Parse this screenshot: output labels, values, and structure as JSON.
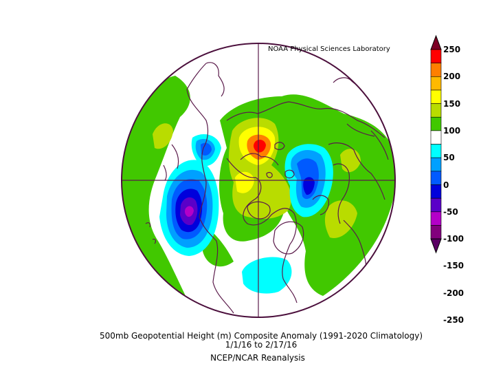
{
  "header": {
    "credit": "NOAA Physical Sciences Laboratory"
  },
  "caption": {
    "line1": "500mb Geopotential Height (m) Composite Anomaly (1991-2020 Climatology)",
    "line2": "1/1/16   to 2/17/16",
    "line3": "NCEP/NCAR Reanalysis"
  },
  "colorbar": {
    "levels": [
      "250",
      "200",
      "150",
      "100",
      "50",
      "0",
      "-50",
      "-100",
      "-150",
      "-200",
      "-250"
    ],
    "colors": [
      "#7d0025",
      "#ff0000",
      "#ff7f00",
      "#ffb900",
      "#ffff00",
      "#b9dc00",
      "#41c800",
      "#ffffff",
      "#00ffff",
      "#00a0ff",
      "#005aff",
      "#0000dc",
      "#5a00c8",
      "#b400c8",
      "#82007d",
      "#5a0064"
    ]
  },
  "map": {
    "projection": "north-polar-stereographic",
    "fill_palette": {
      "pos50": "#41c800",
      "pos100": "#b9dc00",
      "pos150": "#ffff00",
      "pos200": "#ff7f00",
      "pos250": "#ff0000",
      "neg50": "#00ffff",
      "neg100": "#00a0ff",
      "neg150": "#005aff",
      "neg200": "#0000dc",
      "neg250": "#5a00c8",
      "neg300": "#b400c8"
    }
  }
}
